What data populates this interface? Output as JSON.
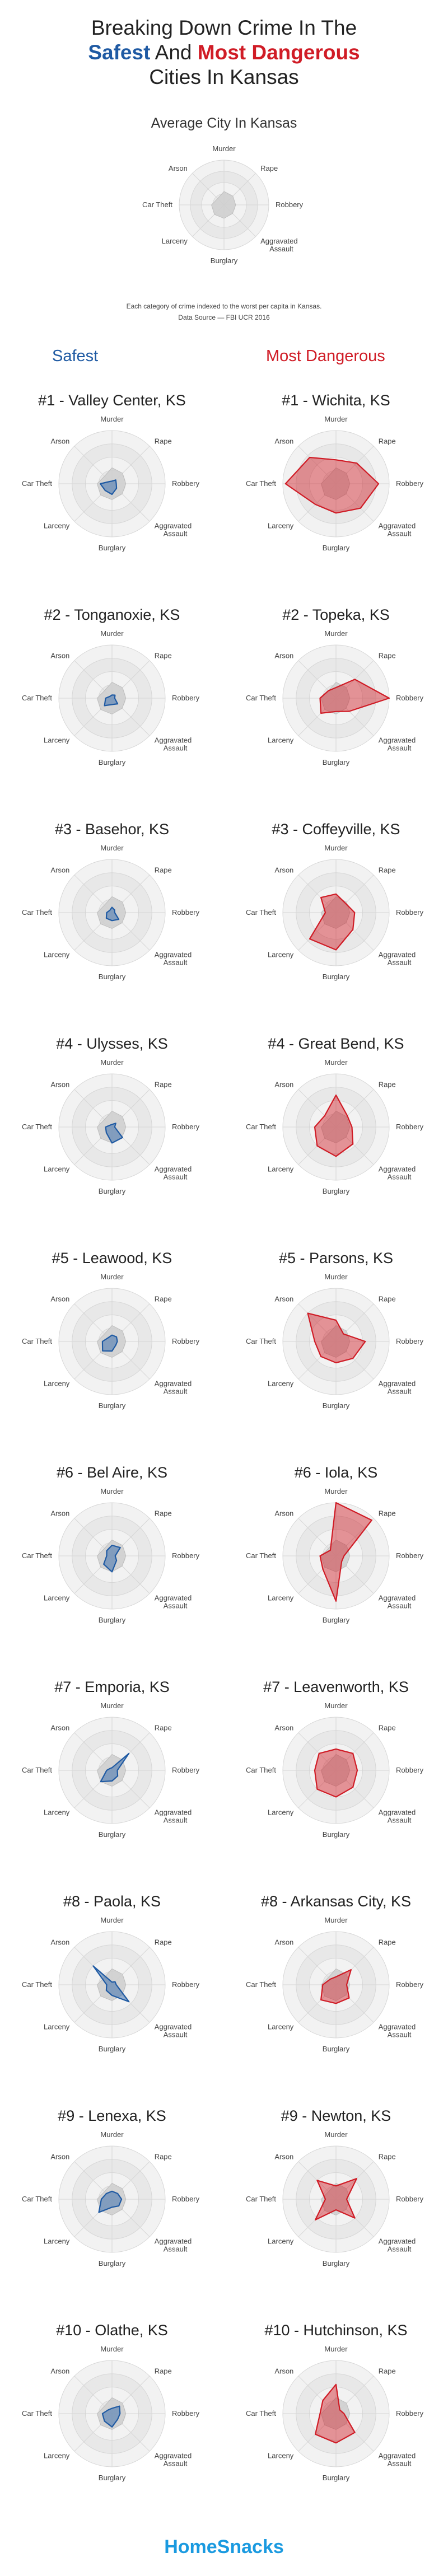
{
  "header": {
    "line1": "Breaking Down Crime In The",
    "safest": "Safest",
    "and": "And",
    "most_dangerous": "Most Dangerous",
    "line3": "Cities In Kansas"
  },
  "average": {
    "title": "Average City In Kansas",
    "note": "Each category of crime indexed to the worst per capita in Kansas.",
    "source": "Data Source — FBI UCR 2016"
  },
  "columns": {
    "safest": "Safest",
    "dangerous": "Most Dangerous"
  },
  "footer": {
    "brand": "HomeSnacks"
  },
  "colors": {
    "safe": "#1f5aa3",
    "danger": "#d01c26",
    "average": "#cfcfcf"
  },
  "chart_data": {
    "type": "radar",
    "axes": [
      "Murder",
      "Rape",
      "Robbery",
      "Aggravated Assault",
      "Burglary",
      "Larceny",
      "Car Theft",
      "Arson"
    ],
    "rlim": [
      0,
      1
    ],
    "average": [
      0.3,
      0.28,
      0.26,
      0.27,
      0.3,
      0.3,
      0.28,
      0.2
    ],
    "safest": [
      {
        "title": "#1 - Valley Center, KS",
        "values": [
          0.05,
          0.1,
          0.08,
          0.12,
          0.2,
          0.18,
          0.22,
          0.06
        ]
      },
      {
        "title": "#2 - Tonganoxie, KS",
        "values": [
          0.06,
          0.08,
          0.05,
          0.15,
          0.12,
          0.2,
          0.12,
          0.05
        ]
      },
      {
        "title": "#3 - Basehor, KS",
        "values": [
          0.1,
          0.07,
          0.05,
          0.18,
          0.15,
          0.15,
          0.1,
          0.06
        ]
      },
      {
        "title": "#4 - Ulysses, KS",
        "values": [
          0.05,
          0.1,
          0.05,
          0.28,
          0.3,
          0.15,
          0.12,
          0.05
        ]
      },
      {
        "title": "#5 - Leawood, KS",
        "values": [
          0.12,
          0.12,
          0.1,
          0.1,
          0.18,
          0.25,
          0.18,
          0.1
        ]
      },
      {
        "title": "#6 - Bel Aire, KS",
        "values": [
          0.2,
          0.22,
          0.06,
          0.12,
          0.3,
          0.22,
          0.1,
          0.14
        ]
      },
      {
        "title": "#7 - Emporia, KS",
        "values": [
          0.05,
          0.45,
          0.1,
          0.15,
          0.2,
          0.3,
          0.1,
          0.05
        ]
      },
      {
        "title": "#8 - Paola, KS",
        "values": [
          0.05,
          0.08,
          0.08,
          0.45,
          0.2,
          0.15,
          0.1,
          0.5
        ]
      },
      {
        "title": "#9 - Lenexa, KS",
        "values": [
          0.15,
          0.15,
          0.18,
          0.18,
          0.15,
          0.35,
          0.2,
          0.15
        ]
      },
      {
        "title": "#10 - Olathe, KS",
        "values": [
          0.1,
          0.2,
          0.15,
          0.15,
          0.25,
          0.2,
          0.18,
          0.1
        ]
      }
    ],
    "dangerous": [
      {
        "title": "#1 - Wichita, KS",
        "values": [
          0.45,
          0.55,
          0.8,
          0.65,
          0.55,
          0.55,
          0.95,
          0.7
        ]
      },
      {
        "title": "#2 - Topeka, KS",
        "values": [
          0.2,
          0.5,
          1.0,
          0.35,
          0.25,
          0.4,
          0.3,
          0.2
        ]
      },
      {
        "title": "#3 - Coffeyville, KS",
        "values": [
          0.35,
          0.25,
          0.35,
          0.45,
          0.7,
          0.7,
          0.2,
          0.4
        ]
      },
      {
        "title": "#4 - Great Bend, KS",
        "values": [
          0.6,
          0.3,
          0.3,
          0.45,
          0.55,
          0.5,
          0.4,
          0.3
        ]
      },
      {
        "title": "#5 - Parsons, KS",
        "values": [
          0.4,
          0.2,
          0.55,
          0.45,
          0.4,
          0.4,
          0.4,
          0.75
        ]
      },
      {
        "title": "#6 - Iola, KS",
        "values": [
          1.0,
          0.95,
          0.15,
          0.15,
          0.85,
          0.35,
          0.3,
          0.15
        ]
      },
      {
        "title": "#7 - Leavenworth, KS",
        "values": [
          0.4,
          0.45,
          0.4,
          0.45,
          0.5,
          0.5,
          0.4,
          0.45
        ]
      },
      {
        "title": "#8 - Arkansas City, KS",
        "values": [
          0.15,
          0.4,
          0.2,
          0.35,
          0.35,
          0.4,
          0.25,
          0.15
        ]
      },
      {
        "title": "#9 - Newton, KS",
        "values": [
          0.25,
          0.55,
          0.2,
          0.5,
          0.2,
          0.55,
          0.2,
          0.5
        ]
      },
      {
        "title": "#10 - Hutchinson, KS",
        "values": [
          0.55,
          0.1,
          0.15,
          0.5,
          0.55,
          0.55,
          0.3,
          0.35
        ]
      }
    ]
  }
}
